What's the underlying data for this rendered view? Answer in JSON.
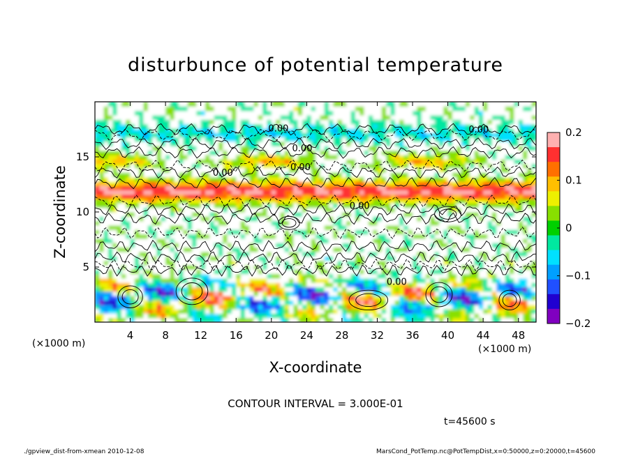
{
  "chart_data": {
    "type": "heatmap",
    "title": "disturbunce of potential temperature",
    "xlabel": "X-coordinate",
    "ylabel": "Z-coordinate",
    "x_unit": "(×1000 m)",
    "z_unit": "(×1000 m)",
    "xlim": [
      0,
      50
    ],
    "ylim": [
      0,
      20
    ],
    "x_ticks": [
      4,
      8,
      12,
      16,
      20,
      24,
      28,
      32,
      36,
      40,
      44,
      48
    ],
    "y_ticks": [
      5,
      10,
      15
    ],
    "colorbar": {
      "vmin": -0.2,
      "vmax": 0.2,
      "ticks": [
        "0.2",
        "0.1",
        "0",
        "−0.1",
        "−0.2"
      ],
      "tick_values": [
        0.2,
        0.1,
        0,
        -0.1,
        -0.2
      ],
      "colors": [
        "#ffb0b0",
        "#ff3030",
        "#ff7000",
        "#ffbf00",
        "#eef000",
        "#88e000",
        "#00d000",
        "#00e8a0",
        "#00e0ff",
        "#00a0ff",
        "#2050ff",
        "#2000d0",
        "#8000c0"
      ]
    },
    "contour_interval": "CONTOUR INTERVAL = 3.000E-01",
    "contour_labels": [
      {
        "text": "0.00",
        "x": 20.8,
        "z": 17.3
      },
      {
        "text": "0.00",
        "x": 43.5,
        "z": 17.2
      },
      {
        "text": "0.00",
        "x": 23.5,
        "z": 15.5
      },
      {
        "text": "0.00",
        "x": 23.3,
        "z": 13.8
      },
      {
        "text": "0.00",
        "x": 14.5,
        "z": 13.3
      },
      {
        "text": "0.00",
        "x": 30.0,
        "z": 10.3
      },
      {
        "text": "0.00",
        "x": 34.2,
        "z": 3.4
      }
    ]
  },
  "annotations": {
    "contour_interval": "CONTOUR INTERVAL = 3.000E-01",
    "time": "t=45600 s"
  },
  "footer": {
    "left": "./gpview_dist-from-xmean  2010-12-08",
    "right": "MarsCond_PotTemp.nc@PotTempDist,x=0:50000,z=0:20000,t=45600"
  }
}
